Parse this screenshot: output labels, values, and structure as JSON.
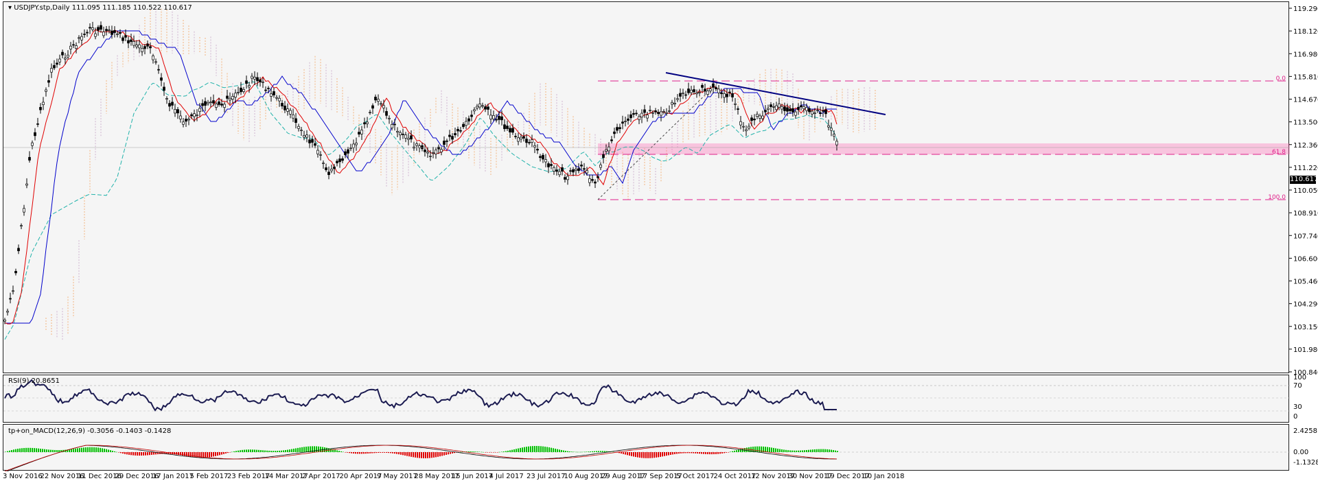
{
  "chart": {
    "symbol_title": "USDJPY.stp,Daily",
    "ohlc": "111.095 111.185 110.522 110.617",
    "current_price": "110.617"
  },
  "price_axis": [
    "119.290",
    "118.120",
    "116.980",
    "115.810",
    "114.670",
    "113.500",
    "112.360",
    "111.220",
    "110.050",
    "108.910",
    "107.740",
    "106.600",
    "105.460",
    "104.290",
    "103.150",
    "101.980",
    "100.840"
  ],
  "fib_labels": {
    "level_0": "0.0",
    "level_618": "61.8",
    "level_100": "100.0"
  },
  "rsi": {
    "title": "RSI(9) 20.8651",
    "axis": [
      "100",
      "70",
      "30",
      "0"
    ]
  },
  "macd": {
    "title": "tp+on_MACD(12,26,9) -0.3056 -0.1403 -0.1428",
    "axis": [
      "2.4258",
      "0.00",
      "-1.1328"
    ]
  },
  "dates": [
    "3 Nov 2016",
    "22 Nov 2016",
    "11 Dec 2016",
    "29 Dec 2016",
    "17 Jan 2017",
    "5 Feb 2017",
    "23 Feb 2017",
    "14 Mar 2017",
    "2 Apr 2017",
    "20 Apr 2017",
    "9 May 2017",
    "28 May 2017",
    "15 Jun 2017",
    "4 Jul 2017",
    "23 Jul 2017",
    "10 Aug 2017",
    "29 Aug 2017",
    "17 Sep 2017",
    "5 Oct 2017",
    "24 Oct 2017",
    "12 Nov 2017",
    "30 Nov 2017",
    "19 Dec 2017",
    "10 Jan 2018"
  ],
  "colors": {
    "background": "#f5f5f5",
    "candle": "#000000",
    "tenkan": "#e00000",
    "kijun": "#0000cc",
    "cloud_up": "#f4a460",
    "cloud_down": "#c8a2c8",
    "ma": "#20b2aa",
    "trendline": "#000080",
    "fib": "#e0208a",
    "zone": "#ff69b4",
    "rsi_line": "#1a1a50",
    "macd_up": "#00c000",
    "macd_down": "#e00000"
  }
}
